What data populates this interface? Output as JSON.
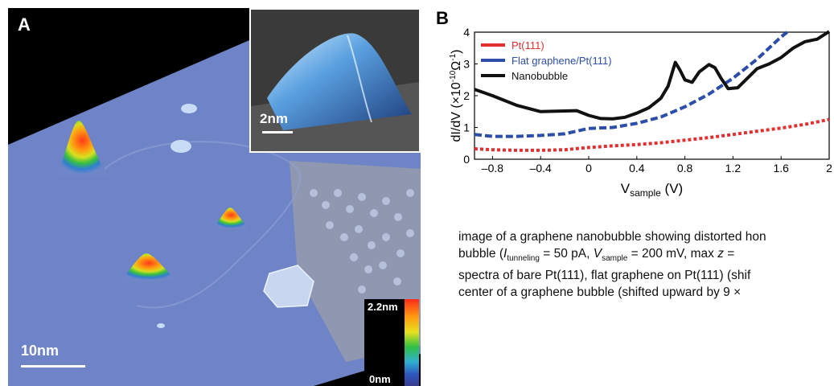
{
  "panel_a": {
    "label": "A",
    "scale_bar_label": "10nm",
    "inset_scale_bar_label": "2nm",
    "colorbar": {
      "max_label": "2.2nm",
      "min_label": "0nm"
    }
  },
  "panel_b": {
    "label": "B"
  },
  "chart_data": {
    "type": "line",
    "xlabel_main": "V",
    "xlabel_sub": "sample",
    "xlabel_unit": " (V)",
    "ylabel_text": "dI/dV (×10",
    "ylabel_exp": "-10",
    "ylabel_unit": "Ω",
    "ylabel_unit_exp": "-1",
    "ylabel_close": ")",
    "xlim": [
      -0.95,
      2.0
    ],
    "ylim": [
      0,
      4
    ],
    "xticks": [
      "–0.8",
      "–0.4",
      "0",
      "0.4",
      "0.8",
      "1.2",
      "1.6",
      "2"
    ],
    "xtick_values": [
      -0.8,
      -0.4,
      0,
      0.4,
      0.8,
      1.2,
      1.6,
      2.0
    ],
    "yticks": [
      "0",
      "1",
      "2",
      "3",
      "4"
    ],
    "ytick_values": [
      0,
      1,
      2,
      3,
      4
    ],
    "legend_position": "top-left",
    "series": [
      {
        "name": "Pt(111)",
        "color": "#e03030",
        "style": "dotted",
        "x": [
          -0.95,
          -0.8,
          -0.6,
          -0.4,
          -0.2,
          0,
          0.2,
          0.4,
          0.6,
          0.8,
          1.0,
          1.2,
          1.4,
          1.6,
          1.8,
          2.0
        ],
        "y": [
          0.33,
          0.3,
          0.28,
          0.28,
          0.3,
          0.37,
          0.42,
          0.46,
          0.52,
          0.6,
          0.68,
          0.78,
          0.88,
          0.98,
          1.1,
          1.25
        ]
      },
      {
        "name": "Flat graphene/Pt(111)",
        "color": "#2c4ea8",
        "style": "dashed",
        "x": [
          -0.95,
          -0.8,
          -0.6,
          -0.4,
          -0.2,
          0,
          0.2,
          0.4,
          0.6,
          0.8,
          1.0,
          1.2,
          1.4,
          1.6,
          1.65
        ],
        "y": [
          0.78,
          0.72,
          0.72,
          0.75,
          0.8,
          0.97,
          1.0,
          1.13,
          1.33,
          1.65,
          2.05,
          2.55,
          3.15,
          3.85,
          4.0
        ]
      },
      {
        "name": "Nanobubble",
        "color": "#111111",
        "style": "solid",
        "x": [
          -0.95,
          -0.8,
          -0.6,
          -0.4,
          -0.2,
          -0.1,
          0,
          0.1,
          0.2,
          0.3,
          0.4,
          0.5,
          0.6,
          0.66,
          0.72,
          0.76,
          0.8,
          0.86,
          0.92,
          1.0,
          1.05,
          1.1,
          1.16,
          1.24,
          1.32,
          1.4,
          1.5,
          1.6,
          1.7,
          1.8,
          1.9,
          2.0
        ],
        "y": [
          2.2,
          2.0,
          1.7,
          1.5,
          1.52,
          1.53,
          1.38,
          1.28,
          1.27,
          1.32,
          1.45,
          1.62,
          1.92,
          2.3,
          3.05,
          2.8,
          2.5,
          2.42,
          2.75,
          2.98,
          2.88,
          2.55,
          2.22,
          2.25,
          2.55,
          2.85,
          3.0,
          3.2,
          3.5,
          3.7,
          3.78,
          4.02
        ]
      }
    ]
  },
  "caption": {
    "line1": "image of a graphene nanobubble showing distorted hon",
    "line2_a": "bubble (",
    "line2_i1": "I",
    "line2_sub1": "tunneling",
    "line2_b": " = 50 pA, ",
    "line2_i2": "V",
    "line2_sub2": "sample",
    "line2_c": " = 200 mV, max ",
    "line2_i3": "z",
    "line2_d": " = ",
    "line3": "spectra of bare Pt(111), flat graphene on Pt(111) (shif",
    "line4": "center of a graphene bubble (shifted upward by 9 ×"
  }
}
